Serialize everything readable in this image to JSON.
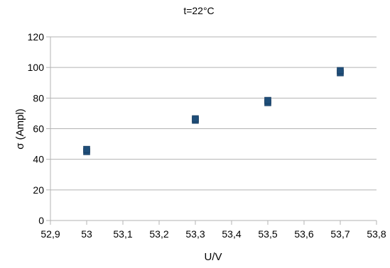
{
  "chart_data": {
    "type": "scatter",
    "title": "t=22°C",
    "xlabel": "U/V",
    "ylabel": "σ (Ampl)",
    "xlim": [
      52.9,
      53.8
    ],
    "ylim": [
      0,
      120
    ],
    "x_ticks": [
      "52,9",
      "53",
      "53,1",
      "53,2",
      "53,3",
      "53,4",
      "53,5",
      "53,6",
      "53,7",
      "53,8"
    ],
    "y_ticks": [
      "0",
      "20",
      "40",
      "60",
      "80",
      "100",
      "120"
    ],
    "grid": "horizontal",
    "marker": "square",
    "color": "#1f4e79",
    "series": [
      {
        "points": [
          {
            "x": 53.0,
            "y": 45
          },
          {
            "x": 53.0,
            "y": 46.5
          },
          {
            "x": 53.3,
            "y": 65.5
          },
          {
            "x": 53.3,
            "y": 66.5
          },
          {
            "x": 53.5,
            "y": 77
          },
          {
            "x": 53.5,
            "y": 78.5
          },
          {
            "x": 53.7,
            "y": 96.5
          },
          {
            "x": 53.7,
            "y": 98
          }
        ]
      }
    ]
  }
}
